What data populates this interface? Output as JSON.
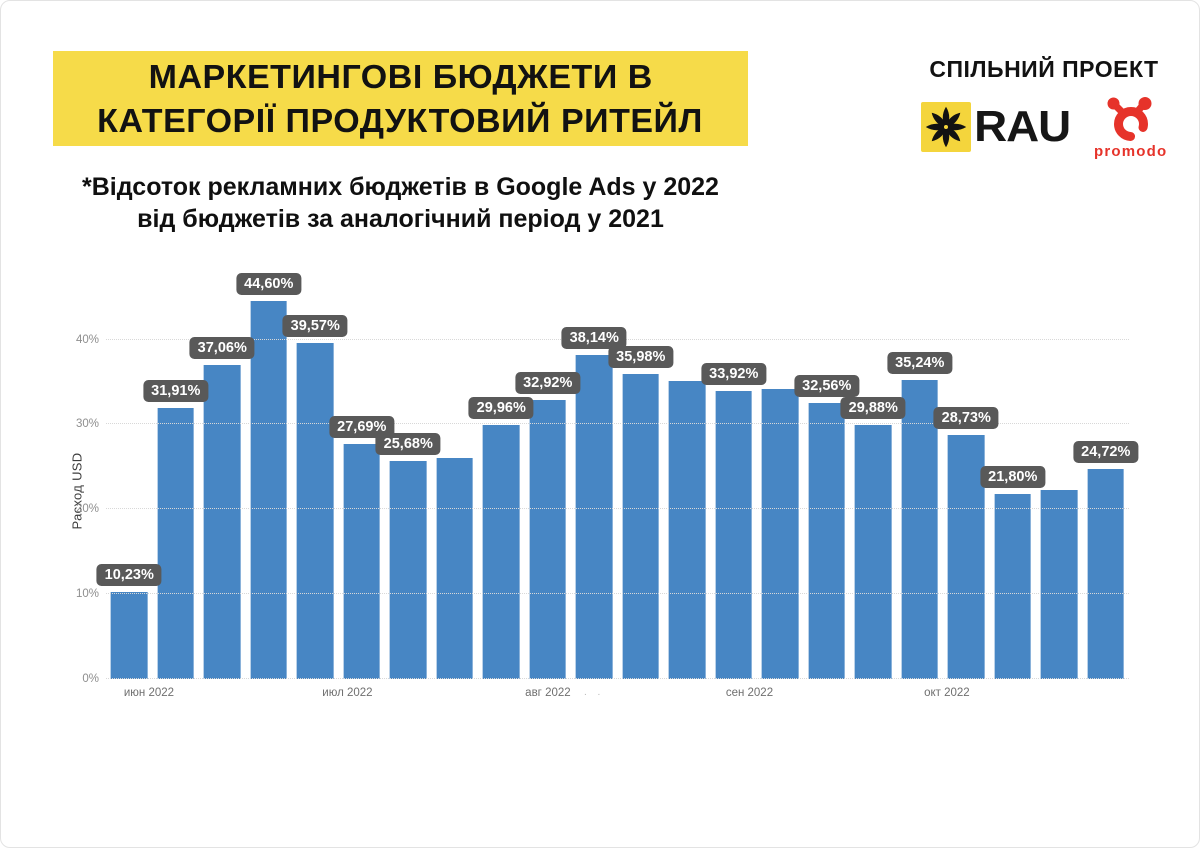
{
  "header": {
    "title_line1": "МАРКЕТИНГОВІ БЮДЖЕТИ В",
    "title_line2": "КАТЕГОРІЇ ПРОДУКТОВИЙ РИТЕЙЛ",
    "title_bg_color": "#F6DB49",
    "partners_label": "СПІЛЬНИЙ ПРОЕКТ",
    "rau_name": "RAU",
    "rau_square_color": "#F4D53C",
    "rau_star_color": "#121212",
    "promodo_name": "promodo",
    "promodo_color": "#E6332A"
  },
  "subtitle": {
    "line1": "*Відсоток рекламних бюджетів в Google Ads у 2022",
    "line2": "від бюджетів за аналогічний період у 2021"
  },
  "chart_data": {
    "type": "bar",
    "title": "",
    "xlabel": "",
    "ylabel": "Расход USD",
    "bar_color": "#4786C4",
    "label_bg_color": "#595959",
    "grid": true,
    "ylim": [
      0,
      46.9
    ],
    "yticks": [
      "0%",
      "10%",
      "20%",
      "30%",
      "40%"
    ],
    "x_axis_labels": [
      {
        "text": "июн 2022",
        "x_pct": 4.2
      },
      {
        "text": "июл 2022",
        "x_pct": 23.6
      },
      {
        "text": "авг 2022",
        "x_pct": 43.2
      },
      {
        "text": "сен 2022",
        "x_pct": 62.9
      },
      {
        "text": "окт 2022",
        "x_pct": 82.2
      }
    ],
    "bars": [
      {
        "value": 10.23,
        "label": "10,23%"
      },
      {
        "value": 31.91,
        "label": "31,91%"
      },
      {
        "value": 37.06,
        "label": "37,06%"
      },
      {
        "value": 44.6,
        "label": "44,60%"
      },
      {
        "value": 39.57,
        "label": "39,57%"
      },
      {
        "value": 27.69,
        "label": "27,69%"
      },
      {
        "value": 25.68,
        "label": "25,68%"
      },
      {
        "value": 26.1,
        "label": null
      },
      {
        "value": 29.96,
        "label": "29,96%"
      },
      {
        "value": 32.92,
        "label": "32,92%"
      },
      {
        "value": 38.14,
        "label": "38,14%"
      },
      {
        "value": 35.98,
        "label": "35,98%"
      },
      {
        "value": 35.1,
        "label": null
      },
      {
        "value": 33.92,
        "label": "33,92%"
      },
      {
        "value": 34.2,
        "label": null
      },
      {
        "value": 32.56,
        "label": "32,56%"
      },
      {
        "value": 29.88,
        "label": "29,88%"
      },
      {
        "value": 35.24,
        "label": "35,24%"
      },
      {
        "value": 28.73,
        "label": "28,73%"
      },
      {
        "value": 21.8,
        "label": "21,80%"
      },
      {
        "value": 22.3,
        "label": null
      },
      {
        "value": 24.72,
        "label": "24,72%"
      }
    ],
    "stray_marks": ". ."
  }
}
